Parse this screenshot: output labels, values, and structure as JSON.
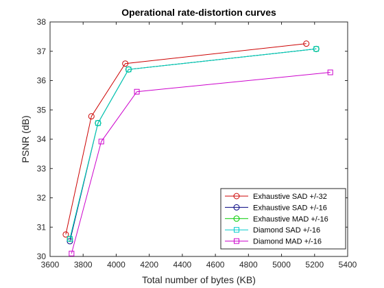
{
  "chart_data": {
    "type": "line",
    "title": "Operational rate-distortion curves",
    "xlabel": "Total number of bytes (KB)",
    "ylabel": "PSNR (dB)",
    "xlim": [
      3600,
      5400
    ],
    "ylim": [
      30,
      38
    ],
    "xticks": [
      3600,
      3800,
      4000,
      4200,
      4400,
      4600,
      4800,
      5000,
      5200,
      5400
    ],
    "yticks": [
      30,
      31,
      32,
      33,
      34,
      35,
      36,
      37,
      38
    ],
    "grid": false,
    "legend_position": "bottom-right",
    "series": [
      {
        "name": "Exhaustive SAD +/-32",
        "color": "#cc0000",
        "marker": "circle",
        "x": [
          3695,
          3850,
          4055,
          5150
        ],
        "y": [
          30.75,
          34.78,
          36.58,
          37.26
        ]
      },
      {
        "name": "Exhaustive SAD +/-16",
        "color": "#00007f",
        "marker": "circle",
        "x": [
          3720,
          3890,
          4075,
          5210
        ],
        "y": [
          30.52,
          34.55,
          36.38,
          37.08
        ]
      },
      {
        "name": "Exhaustive MAD +/-16",
        "color": "#00cc00",
        "marker": "circle",
        "x": [
          3720,
          3890,
          4075,
          5210
        ],
        "y": [
          30.6,
          34.55,
          36.38,
          37.08
        ]
      },
      {
        "name": "Diamond SAD +/-16",
        "color": "#00cccc",
        "marker": "square",
        "x": [
          3720,
          3890,
          4075,
          5210
        ],
        "y": [
          30.6,
          34.55,
          36.38,
          37.08
        ]
      },
      {
        "name": "Diamond MAD +/-16",
        "color": "#cc00cc",
        "marker": "square",
        "x": [
          3730,
          3910,
          4125,
          5295
        ],
        "y": [
          30.1,
          33.92,
          35.62,
          36.28
        ]
      }
    ]
  }
}
